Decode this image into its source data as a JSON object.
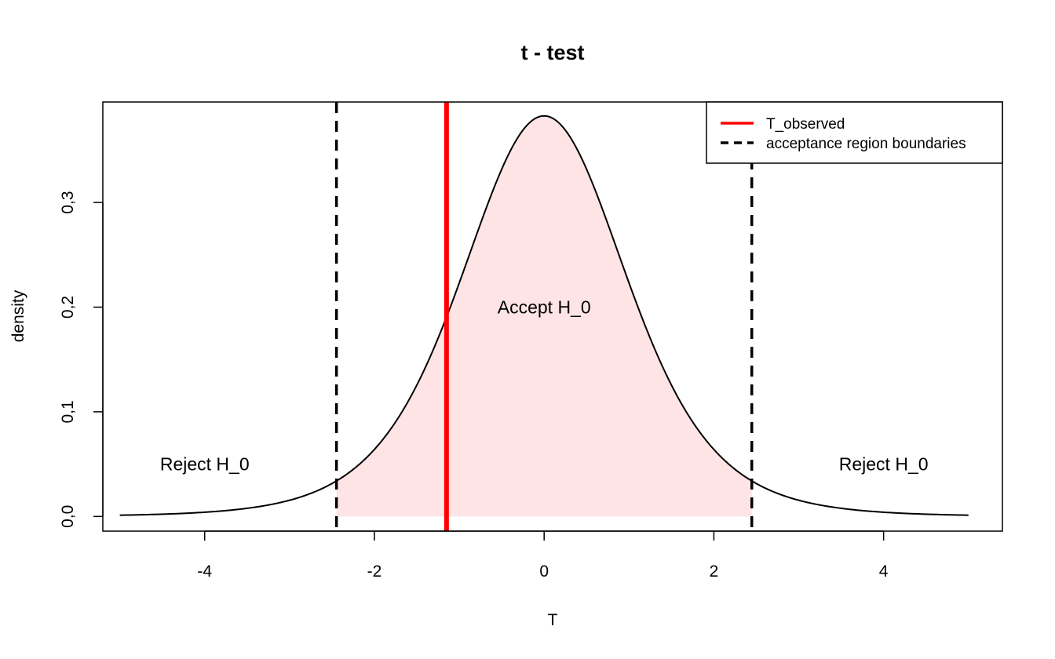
{
  "chart_data": {
    "type": "line",
    "title": "t - test",
    "xlabel": "T",
    "ylabel": "density",
    "xlim": [
      -5.2,
      5.4
    ],
    "ylim": [
      -0.014,
      0.396
    ],
    "x_ticks": [
      -4,
      -2,
      0,
      2,
      4
    ],
    "x_tick_labels": [
      "-4",
      "-2",
      "0",
      "2",
      "4"
    ],
    "y_ticks": [
      0.0,
      0.1,
      0.2,
      0.3
    ],
    "y_tick_labels": [
      "0,0",
      "0,1",
      "0,2",
      "0,3"
    ],
    "distribution": {
      "name": "Student t",
      "df": 6,
      "x_range": [
        -5,
        5
      ]
    },
    "t_observed": -1.15,
    "acceptance_boundaries": [
      -2.447,
      2.447
    ],
    "acceptance_fill_color": "#ffe4e6",
    "observed_color": "#ff0000",
    "curve_color": "#000000",
    "annotations": [
      {
        "text": "Reject H_0",
        "x": -4.0,
        "y": 0.05
      },
      {
        "text": "Accept H_0",
        "x": 0.0,
        "y": 0.2
      },
      {
        "text": "Reject H_0",
        "x": 4.0,
        "y": 0.05
      }
    ],
    "legend": {
      "position": "top-right",
      "entries": [
        {
          "label": "T_observed",
          "color": "#ff0000",
          "style": "solid"
        },
        {
          "label": "acceptance region boundaries",
          "color": "#000000",
          "style": "dashed"
        }
      ]
    }
  }
}
